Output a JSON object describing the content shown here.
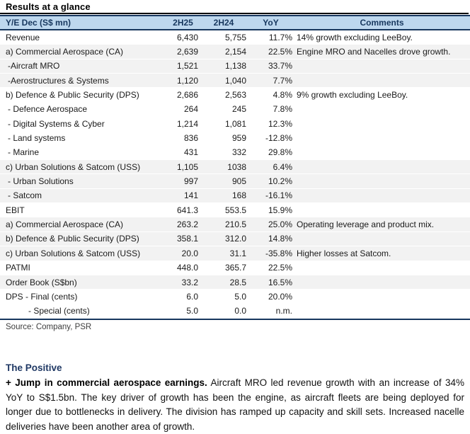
{
  "title": "Results at a glance",
  "table": {
    "headers": [
      "Y/E Dec (S$ mn)",
      "2H25",
      "2H24",
      "YoY",
      "Comments"
    ],
    "rows": [
      {
        "label": "Revenue",
        "h25": "6,430",
        "h24": "5,755",
        "yoy": "11.7%",
        "comment": "14% growth excluding LeeBoy.",
        "shaded": false,
        "indent": 0
      },
      {
        "label": "a) Commercial Aerospace (CA)",
        "h25": "2,639",
        "h24": "2,154",
        "yoy": "22.5%",
        "comment": "Engine MRO and Nacelles drove growth.",
        "shaded": true,
        "indent": 0
      },
      {
        "label": "-Aircraft MRO",
        "h25": "1,521",
        "h24": "1,138",
        "yoy": "33.7%",
        "comment": "",
        "shaded": true,
        "indent": 1
      },
      {
        "label": "-Aerostructures & Systems",
        "h25": "1,120",
        "h24": "1,040",
        "yoy": "7.7%",
        "comment": "",
        "shaded": true,
        "indent": 1
      },
      {
        "label": "b) Defence & Public Security (DPS)",
        "h25": "2,686",
        "h24": "2,563",
        "yoy": "4.8%",
        "comment": "9% growth excluding LeeBoy.",
        "shaded": false,
        "indent": 0
      },
      {
        "label": "- Defence Aerospace",
        "h25": "264",
        "h24": "245",
        "yoy": "7.8%",
        "comment": "",
        "shaded": false,
        "indent": 1
      },
      {
        "label": "- Digital Systems & Cyber",
        "h25": "1,214",
        "h24": "1,081",
        "yoy": "12.3%",
        "comment": "",
        "shaded": false,
        "indent": 1
      },
      {
        "label": "- Land systems",
        "h25": "836",
        "h24": "959",
        "yoy": "-12.8%",
        "comment": "",
        "shaded": false,
        "indent": 1
      },
      {
        "label": "- Marine",
        "h25": "431",
        "h24": "332",
        "yoy": "29.8%",
        "comment": "",
        "shaded": false,
        "indent": 1
      },
      {
        "label": "c) Urban Solutions & Satcom (USS)",
        "h25": "1,105",
        "h24": "1038",
        "yoy": "6.4%",
        "comment": "",
        "shaded": true,
        "indent": 0
      },
      {
        "label": "- Urban Solutions",
        "h25": "997",
        "h24": "905",
        "yoy": "10.2%",
        "comment": "",
        "shaded": true,
        "indent": 1
      },
      {
        "label": "- Satcom",
        "h25": "141",
        "h24": "168",
        "yoy": "-16.1%",
        "comment": "",
        "shaded": true,
        "indent": 1
      },
      {
        "label": "EBIT",
        "h25": "641.3",
        "h24": "553.5",
        "yoy": "15.9%",
        "comment": "",
        "shaded": false,
        "indent": 0
      },
      {
        "label": "a) Commercial Aerospace (CA)",
        "h25": "263.2",
        "h24": "210.5",
        "yoy": "25.0%",
        "comment": "Operating leverage and product mix.",
        "shaded": true,
        "indent": 0
      },
      {
        "label": "b) Defence & Public Security (DPS)",
        "h25": "358.1",
        "h24": "312.0",
        "yoy": "14.8%",
        "comment": "",
        "shaded": true,
        "indent": 0
      },
      {
        "label": "c) Urban Solutions & Satcom (USS)",
        "h25": "20.0",
        "h24": "31.1",
        "yoy": "-35.8%",
        "comment": "Higher losses at Satcom.",
        "shaded": true,
        "indent": 0
      },
      {
        "label": "PATMI",
        "h25": "448.0",
        "h24": "365.7",
        "yoy": "22.5%",
        "comment": "",
        "shaded": false,
        "indent": 0
      },
      {
        "label": "Order Book (S$bn)",
        "h25": "33.2",
        "h24": "28.5",
        "yoy": "16.5%",
        "comment": "",
        "shaded": true,
        "indent": 0
      },
      {
        "label": "DPS - Final (cents)",
        "h25": "6.0",
        "h24": "5.0",
        "yoy": "20.0%",
        "comment": "",
        "shaded": false,
        "indent": 0
      },
      {
        "label": "- Special (cents)",
        "h25": "5.0",
        "h24": "0.0",
        "yoy": "n.m.",
        "comment": "",
        "shaded": false,
        "indent": 2
      }
    ]
  },
  "source": "Source: Company, PSR",
  "positive": {
    "heading": "The Positive",
    "lead_bold": "+ Jump in commercial aerospace earnings.",
    "body": " Aircraft MRO led revenue growth with an increase of 34% YoY to S$1.5bn. The key driver of growth has been the engine, as aircraft fleets are being deployed for longer due to bottlenecks in delivery. The division has ramped up capacity and skill sets. Increased nacelle deliveries have been another area of growth."
  },
  "colors": {
    "header_bg": "#bdd7ee",
    "header_text": "#17375e",
    "border_navy": "#17375e",
    "shaded_row": "#f2f2f2",
    "heading_navy": "#1f3864"
  }
}
